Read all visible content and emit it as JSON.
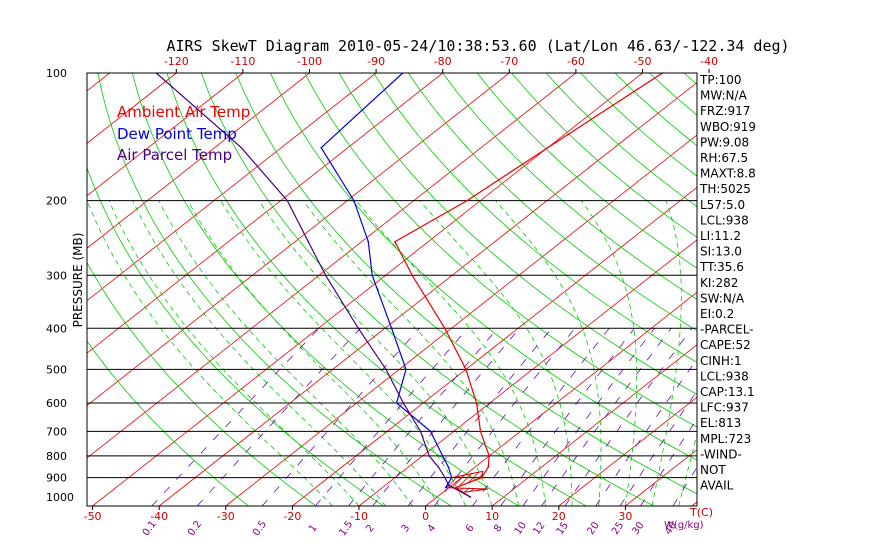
{
  "title": "AIRS SkewT Diagram 2010-05-24/10:38:53.60 (Lat/Lon 46.63/-122.34 deg)",
  "colors": {
    "ambient": "#ee0000",
    "dewpoint": "#0000dd",
    "parcel": "#4b0082",
    "isotherm": "#ee0000",
    "dry_adiabat": "#00cc00",
    "moist_adiabat": "#00cc00",
    "mixing_ratio": "#6a0dad",
    "isobar": "#000000",
    "cape_hatch": "#cc0000"
  },
  "legend": {
    "ambient": "Ambient Air Temp",
    "dewpoint": "Dew Point Temp",
    "parcel": "Air Parcel Temp"
  },
  "chart_data": {
    "type": "line",
    "title": "AIRS SkewT Diagram 2010-05-24/10:38:53.60 (Lat/Lon 46.63/-122.34 deg)",
    "ylabel": "PRESSURE (MB)",
    "xlabel_bottom_right": "T(C)",
    "mixing_ratio_label": "W(g/kg)",
    "y_scale": "log",
    "y_range_mb": [
      1000,
      100
    ],
    "y_ticks_mb": [
      100,
      200,
      300,
      400,
      500,
      600,
      700,
      800,
      900,
      1000
    ],
    "isobars_mb": [
      200,
      300,
      400,
      500,
      600,
      700,
      800,
      900
    ],
    "bottom_temperature_ticks_c": [
      -50,
      -40,
      -30,
      -20,
      -10,
      0,
      10,
      20,
      30
    ],
    "top_temperature_ticks_c": [
      -120,
      -110,
      -100,
      -90,
      -80,
      -70,
      -60,
      -50,
      -40
    ],
    "mixing_ratio_ticks_g_per_kg": [
      "0.1",
      "0.2",
      "0.5",
      "1",
      "1.5",
      "2",
      "3",
      "4",
      "6",
      "8",
      "10",
      "12",
      "15",
      "20",
      "25",
      "30",
      "40"
    ],
    "series": [
      {
        "name": "Ambient Air Temp",
        "points": [
          {
            "p": 1000,
            "t": 5.0
          },
          {
            "p": 975,
            "t": 3.0
          },
          {
            "p": 950,
            "t": 1.0
          },
          {
            "p": 925,
            "t": 2.0
          },
          {
            "p": 900,
            "t": 3.0
          },
          {
            "p": 850,
            "t": 2.0
          },
          {
            "p": 800,
            "t": 0.0
          },
          {
            "p": 700,
            "t": -6.0
          },
          {
            "p": 600,
            "t": -12.0
          },
          {
            "p": 500,
            "t": -20.0
          },
          {
            "p": 400,
            "t": -31.0
          },
          {
            "p": 300,
            "t": -46.0
          },
          {
            "p": 250,
            "t": -55.0
          },
          {
            "p": 200,
            "t": -52.0
          },
          {
            "p": 150,
            "t": -50.0
          },
          {
            "p": 100,
            "t": -47.0
          }
        ]
      },
      {
        "name": "Dew Point Temp",
        "points": [
          {
            "p": 950,
            "t": -0.5
          },
          {
            "p": 900,
            "t": -1.5
          },
          {
            "p": 850,
            "t": -4.0
          },
          {
            "p": 800,
            "t": -7.0
          },
          {
            "p": 700,
            "t": -13.5
          },
          {
            "p": 600,
            "t": -24.0
          },
          {
            "p": 500,
            "t": -29.0
          },
          {
            "p": 400,
            "t": -39.0
          },
          {
            "p": 300,
            "t": -52.0
          },
          {
            "p": 250,
            "t": -59.0
          },
          {
            "p": 200,
            "t": -69.0
          },
          {
            "p": 150,
            "t": -84.0
          },
          {
            "p": 100,
            "t": -86.0
          }
        ]
      },
      {
        "name": "Air Parcel Temp",
        "points": [
          {
            "p": 1000,
            "t": 5.0
          },
          {
            "p": 938,
            "t": -0.5
          },
          {
            "p": 900,
            "t": -2.5
          },
          {
            "p": 850,
            "t": -5.5
          },
          {
            "p": 800,
            "t": -9.0
          },
          {
            "p": 700,
            "t": -15.0
          },
          {
            "p": 600,
            "t": -23.0
          },
          {
            "p": 500,
            "t": -32.0
          },
          {
            "p": 400,
            "t": -44.0
          },
          {
            "p": 300,
            "t": -59.0
          },
          {
            "p": 250,
            "t": -68.0
          },
          {
            "p": 200,
            "t": -79.0
          },
          {
            "p": 150,
            "t": -96.0
          },
          {
            "p": 100,
            "t": -123.0
          }
        ]
      }
    ]
  },
  "indices": [
    "TP:100",
    "MW:N/A",
    "FRZ:917",
    "WBO:919",
    "PW:9.08",
    "RH:67.5",
    "MAXT:8.8",
    "TH:5025",
    "L57:5.0",
    "LCL:938",
    "LI:11.2",
    "SI:13.0",
    "TT:35.6",
    "KI:282",
    "SW:N/A",
    "EI:0.2",
    "-PARCEL-",
    "CAPE:52",
    "CINH:1",
    "LCL:938",
    "CAP:13.1",
    "LFC:937",
    "EL:813",
    "MPL:723",
    "-WIND-",
    "NOT",
    "AVAIL"
  ]
}
